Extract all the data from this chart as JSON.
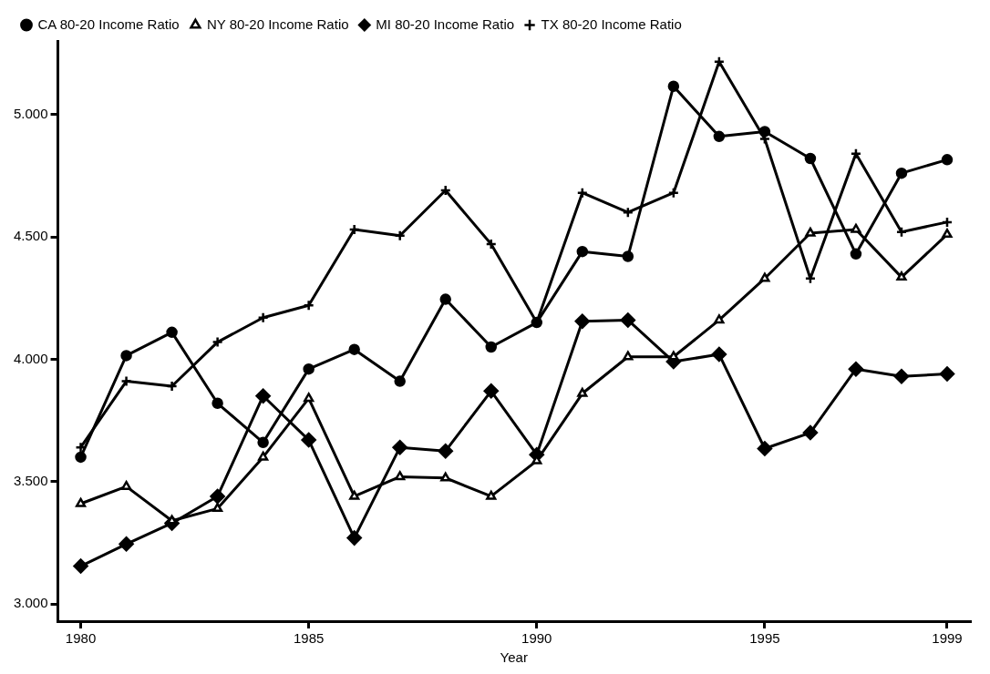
{
  "chart_data": {
    "type": "line",
    "xlabel": "Year",
    "x": [
      1980,
      1981,
      1982,
      1983,
      1984,
      1985,
      1986,
      1987,
      1988,
      1989,
      1990,
      1991,
      1992,
      1993,
      1994,
      1995,
      1996,
      1997,
      1998,
      1999
    ],
    "xlim": [
      1979.5,
      1999.5
    ],
    "xticks": [
      1980,
      1985,
      1990,
      1995,
      1999
    ],
    "ylim": [
      2.93,
      5.3
    ],
    "yticks": [
      {
        "value": 3,
        "label": "3.000"
      },
      {
        "value": 3.5,
        "label": "3.500"
      },
      {
        "value": 4,
        "label": "4.000"
      },
      {
        "value": 4.5,
        "label": "4.500"
      },
      {
        "value": 5,
        "label": "5.000"
      }
    ],
    "grid": false,
    "legend": "top",
    "line_style": "solid",
    "series": [
      {
        "name": "CA 80-20 Income Ratio",
        "color": "#000000",
        "marker": "circle",
        "values": [
          3.6,
          4.015,
          4.11,
          3.82,
          3.66,
          3.96,
          4.04,
          3.91,
          4.245,
          4.05,
          4.15,
          4.44,
          4.42,
          5.115,
          4.91,
          4.93,
          4.82,
          4.43,
          4.76,
          4.815
        ]
      },
      {
        "name": "NY 80-20 Income Ratio",
        "color": "#000000",
        "marker": "triangle",
        "values": [
          3.41,
          3.48,
          3.34,
          3.39,
          3.6,
          3.84,
          3.44,
          3.52,
          3.515,
          3.44,
          3.585,
          3.86,
          4.01,
          4.01,
          4.16,
          4.33,
          4.515,
          4.53,
          4.335,
          4.51
        ]
      },
      {
        "name": "MI 80-20 Income Ratio",
        "color": "#000000",
        "marker": "diamond",
        "values": [
          3.155,
          3.245,
          3.33,
          3.44,
          3.85,
          3.67,
          3.27,
          3.64,
          3.625,
          3.87,
          3.61,
          4.155,
          4.16,
          3.99,
          4.02,
          3.635,
          3.7,
          3.96,
          3.93,
          3.94
        ]
      },
      {
        "name": "TX 80-20 Income Ratio",
        "color": "#000000",
        "marker": "cross",
        "values": [
          3.64,
          3.91,
          3.89,
          4.07,
          4.17,
          4.22,
          4.53,
          4.505,
          4.69,
          4.47,
          4.15,
          4.68,
          4.6,
          4.68,
          5.215,
          4.9,
          4.33,
          4.84,
          4.52,
          4.56
        ]
      }
    ]
  }
}
